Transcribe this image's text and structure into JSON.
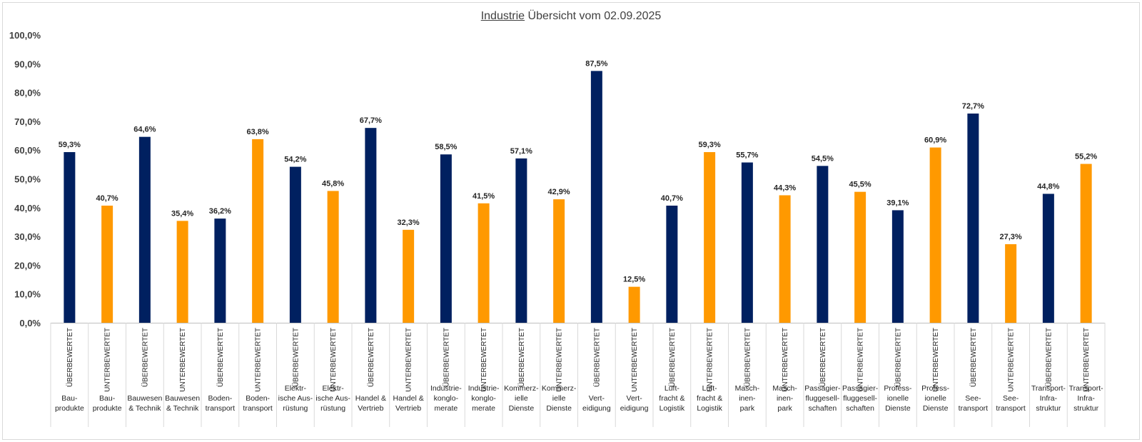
{
  "chart_data": {
    "type": "bar",
    "title_underlined": "Industrie",
    "title_rest": " Übersicht vom 02.09.2025",
    "ylim": [
      0,
      100
    ],
    "ytick_step": 10,
    "ytick_labels": [
      "0,0%",
      "10,0%",
      "20,0%",
      "30,0%",
      "40,0%",
      "50,0%",
      "60,0%",
      "70,0%",
      "80,0%",
      "90,0%",
      "100,0%"
    ],
    "grid": false,
    "colors": {
      "ÜBERBEWERTET": "#002060",
      "UNTERBEWERTET": "#ff9900"
    },
    "categories": [
      {
        "status": "ÜBERBEWERTET",
        "industry": [
          "Bau-",
          "produkte"
        ],
        "value": 59.3,
        "label": "59,3%"
      },
      {
        "status": "UNTERBEWERTET",
        "industry": [
          "Bau-",
          "produkte"
        ],
        "value": 40.7,
        "label": "40,7%"
      },
      {
        "status": "ÜBERBEWERTET",
        "industry": [
          "Bauwesen",
          "& Technik"
        ],
        "value": 64.6,
        "label": "64,6%"
      },
      {
        "status": "UNTERBEWERTET",
        "industry": [
          "Bauwesen",
          "& Technik"
        ],
        "value": 35.4,
        "label": "35,4%"
      },
      {
        "status": "ÜBERBEWERTET",
        "industry": [
          "Boden-",
          "transport"
        ],
        "value": 36.2,
        "label": "36,2%"
      },
      {
        "status": "UNTERBEWERTET",
        "industry": [
          "Boden-",
          "transport"
        ],
        "value": 63.8,
        "label": "63,8%"
      },
      {
        "status": "ÜBERBEWERTET",
        "industry": [
          "Elektr-",
          "ische Aus-",
          "rüstung"
        ],
        "value": 54.2,
        "label": "54,2%"
      },
      {
        "status": "UNTERBEWERTET",
        "industry": [
          "Elektr-",
          "ische Aus-",
          "rüstung"
        ],
        "value": 45.8,
        "label": "45,8%"
      },
      {
        "status": "ÜBERBEWERTET",
        "industry": [
          "Handel &",
          "Vertrieb"
        ],
        "value": 67.7,
        "label": "67,7%"
      },
      {
        "status": "UNTERBEWERTET",
        "industry": [
          "Handel &",
          "Vertrieb"
        ],
        "value": 32.3,
        "label": "32,3%"
      },
      {
        "status": "ÜBERBEWERTET",
        "industry": [
          "Industrie-",
          "konglo-",
          "merate"
        ],
        "value": 58.5,
        "label": "58,5%"
      },
      {
        "status": "UNTERBEWERTET",
        "industry": [
          "Industrie-",
          "konglo-",
          "merate"
        ],
        "value": 41.5,
        "label": "41,5%"
      },
      {
        "status": "ÜBERBEWERTET",
        "industry": [
          "Kommerz-",
          "ielle",
          "Dienste"
        ],
        "value": 57.1,
        "label": "57,1%"
      },
      {
        "status": "UNTERBEWERTET",
        "industry": [
          "Kommerz-",
          "ielle",
          "Dienste"
        ],
        "value": 42.9,
        "label": "42,9%"
      },
      {
        "status": "ÜBERBEWERTET",
        "industry": [
          "Vert-",
          "eidigung"
        ],
        "value": 87.5,
        "label": "87,5%"
      },
      {
        "status": "UNTERBEWERTET",
        "industry": [
          "Vert-",
          "eidigung"
        ],
        "value": 12.5,
        "label": "12,5%"
      },
      {
        "status": "ÜBERBEWERTET",
        "industry": [
          "Luft-",
          "fracht &",
          "Logistik"
        ],
        "value": 40.7,
        "label": "40,7%"
      },
      {
        "status": "UNTERBEWERTET",
        "industry": [
          "Luft-",
          "fracht &",
          "Logistik"
        ],
        "value": 59.3,
        "label": "59,3%"
      },
      {
        "status": "ÜBERBEWERTET",
        "industry": [
          "Masch-",
          "inen-",
          "park"
        ],
        "value": 55.7,
        "label": "55,7%"
      },
      {
        "status": "UNTERBEWERTET",
        "industry": [
          "Masch-",
          "inen-",
          "park"
        ],
        "value": 44.3,
        "label": "44,3%"
      },
      {
        "status": "ÜBERBEWERTET",
        "industry": [
          "Passagier-",
          "fluggesell-",
          "schaften"
        ],
        "value": 54.5,
        "label": "54,5%"
      },
      {
        "status": "UNTERBEWERTET",
        "industry": [
          "Passagier-",
          "fluggesell-",
          "schaften"
        ],
        "value": 45.5,
        "label": "45,5%"
      },
      {
        "status": "ÜBERBEWERTET",
        "industry": [
          "Profess-",
          "ionelle",
          "Dienste"
        ],
        "value": 39.1,
        "label": "39,1%"
      },
      {
        "status": "UNTERBEWERTET",
        "industry": [
          "Profess-",
          "ionelle",
          "Dienste"
        ],
        "value": 60.9,
        "label": "60,9%"
      },
      {
        "status": "ÜBERBEWERTET",
        "industry": [
          "See-",
          "transport"
        ],
        "value": 72.7,
        "label": "72,7%"
      },
      {
        "status": "UNTERBEWERTET",
        "industry": [
          "See-",
          "transport"
        ],
        "value": 27.3,
        "label": "27,3%"
      },
      {
        "status": "ÜBERBEWERTET",
        "industry": [
          "Transport-",
          "Infra-",
          "struktur"
        ],
        "value": 44.8,
        "label": "44,8%"
      },
      {
        "status": "UNTERBEWERTET",
        "industry": [
          "Transport-",
          "Infra-",
          "struktur"
        ],
        "value": 55.2,
        "label": "55,2%"
      }
    ]
  }
}
